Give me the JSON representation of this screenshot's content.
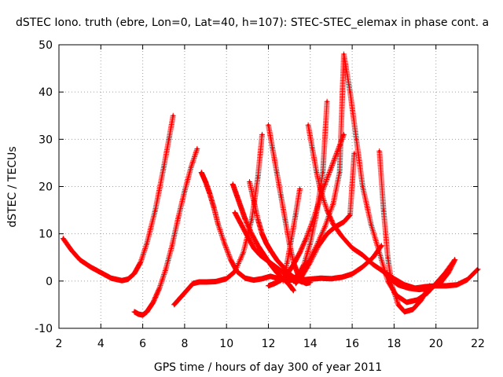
{
  "chart_data": {
    "type": "scatter",
    "title": "dSTEC Iono. truth (ebre, Lon=0, Lat=40, h=107): STEC-STEC_elemax in phase cont. a",
    "xlabel": "GPS time / hours of day 300 of year 2011",
    "ylabel": "dSTEC  / TECUs",
    "xlim": [
      2,
      22
    ],
    "ylim": [
      -10,
      50
    ],
    "xticks": [
      2,
      4,
      6,
      8,
      10,
      12,
      14,
      16,
      18,
      20,
      22
    ],
    "yticks": [
      -10,
      0,
      10,
      20,
      30,
      40,
      50
    ],
    "grid": true,
    "legend": "none",
    "marker": "+",
    "color": "#ff0000",
    "series": [
      {
        "x": [
          2.2,
          2.6,
          3.0,
          3.5,
          4.0,
          4.5,
          5.0,
          5.3,
          5.6,
          5.9,
          6.2,
          6.6,
          7.0,
          7.25,
          7.45
        ],
        "y": [
          9,
          6.5,
          4.5,
          3,
          1.8,
          0.6,
          0.1,
          0.4,
          1.6,
          4,
          8,
          15,
          24,
          30,
          35
        ]
      },
      {
        "x": [
          5.6,
          5.8,
          6.0,
          6.2,
          6.5,
          6.8,
          7.1,
          7.4,
          7.7,
          8.0,
          8.3,
          8.6
        ],
        "y": [
          -6.5,
          -7,
          -7.2,
          -6.5,
          -4.5,
          -1.5,
          2.5,
          7.5,
          13.5,
          19,
          24,
          28
        ]
      },
      {
        "x": [
          7.5,
          7.8,
          8.1,
          8.4,
          8.7,
          9.0,
          9.5,
          10.0,
          10.4,
          10.8,
          11.2,
          11.5,
          11.7
        ],
        "y": [
          -5,
          -3.5,
          -2,
          -0.5,
          -0.2,
          -0.2,
          -0.1,
          0.5,
          2,
          6,
          13,
          22,
          31
        ]
      },
      {
        "x": [
          8.8,
          9.0,
          9.2,
          9.4,
          9.6,
          9.9,
          10.2,
          10.5,
          10.9,
          11.3,
          11.7,
          12.1,
          12.5,
          13.0,
          13.5,
          14.0,
          14.5,
          15.0,
          15.5,
          16.0,
          16.5,
          17.0,
          17.4
        ],
        "y": [
          23,
          21,
          18.5,
          15.5,
          12,
          8,
          4.5,
          2,
          0.6,
          0.2,
          0.5,
          1,
          0.5,
          0.2,
          0.2,
          0.4,
          0.6,
          0.5,
          0.8,
          1.5,
          3,
          5,
          7.5
        ]
      },
      {
        "x": [
          10.3,
          10.5,
          10.7,
          10.9,
          11.2,
          11.5,
          11.8,
          12.1,
          12.4,
          12.7,
          13.0,
          13.2
        ],
        "y": [
          20.5,
          18,
          15.5,
          13,
          10,
          7.5,
          5.5,
          3.5,
          1.8,
          0.5,
          -0.8,
          -2
        ]
      },
      {
        "x": [
          10.4,
          10.7,
          11.0,
          11.3,
          11.6,
          11.9,
          12.2,
          12.5,
          12.8,
          13.1,
          13.4,
          13.7,
          14.0,
          14.3,
          14.6,
          14.8
        ],
        "y": [
          14.5,
          12,
          9.5,
          7,
          5.5,
          4.5,
          3.5,
          2.5,
          1.5,
          0.5,
          1,
          3.5,
          8,
          14.5,
          23,
          38
        ]
      },
      {
        "x": [
          11.1,
          11.3,
          11.5,
          11.7,
          11.9,
          12.1,
          12.4,
          12.7,
          13.0,
          13.3,
          13.6,
          13.9
        ],
        "y": [
          21,
          17,
          13,
          10,
          8,
          6.5,
          4.5,
          3,
          1.5,
          0.5,
          -0.2,
          0
        ]
      },
      {
        "x": [
          12.0,
          12.2,
          12.4,
          12.6,
          12.8,
          13.0,
          13.2,
          13.4,
          13.6,
          13.8,
          14.0
        ],
        "y": [
          33,
          28,
          23,
          18,
          13,
          8,
          4,
          1.5,
          0,
          -0.5,
          -0.3
        ]
      },
      {
        "x": [
          12.0,
          12.3,
          12.6,
          12.9,
          13.2,
          13.5,
          13.8,
          14.1,
          14.4,
          14.7,
          15.0,
          15.3,
          15.6
        ],
        "y": [
          -1,
          -0.5,
          0.2,
          1.5,
          3.5,
          6,
          9,
          12.5,
          16.5,
          20.5,
          24,
          27.5,
          31
        ]
      },
      {
        "x": [
          12.7,
          12.9,
          13.1,
          13.3,
          13.5
        ],
        "y": [
          0,
          4,
          9,
          14,
          19.5
        ]
      },
      {
        "x": [
          13.9,
          14.1,
          14.3,
          14.5,
          14.8,
          15.1,
          15.5,
          16.0,
          16.5,
          17.0,
          17.5,
          18.0,
          18.5,
          19.0,
          19.5,
          20.0,
          20.5,
          21.0,
          21.5,
          22.0
        ],
        "y": [
          33,
          28,
          23,
          19,
          15,
          12,
          9.5,
          7,
          5.5,
          3.5,
          2,
          0.5,
          -0.8,
          -1.5,
          -1.2,
          -1,
          -1,
          -0.8,
          0.3,
          2.5
        ]
      },
      {
        "x": [
          13.2,
          13.5,
          13.9,
          14.3,
          14.7,
          15.1,
          15.4,
          15.6,
          15.9,
          16.2,
          16.5,
          16.9,
          17.3,
          17.7,
          18.1,
          18.6,
          19.1,
          19.6,
          20.0,
          20.4,
          20.9
        ],
        "y": [
          0,
          1.5,
          4,
          7.5,
          11.5,
          16.5,
          23,
          48,
          40,
          30,
          20,
          12,
          6,
          0,
          -3,
          -4.5,
          -4,
          -2.5,
          -0.5,
          1.5,
          4.5
        ]
      },
      {
        "x": [
          13.3,
          13.6,
          14.0,
          14.4,
          14.8,
          15.2,
          15.6,
          15.9,
          16.1
        ],
        "y": [
          -0.5,
          1,
          4,
          7.5,
          10,
          11.5,
          12.5,
          14,
          27
        ]
      },
      {
        "x": [
          17.3,
          17.5,
          17.7,
          17.9,
          18.2,
          18.5,
          18.9,
          19.3,
          19.7
        ],
        "y": [
          27.5,
          15,
          5,
          -1,
          -5,
          -6.5,
          -6,
          -4,
          -1
        ]
      },
      {
        "x": [
          17.5,
          17.8,
          18.2,
          18.7,
          19.2,
          19.7,
          20.2,
          20.6,
          20.9
        ],
        "y": [
          2,
          0.5,
          -0.8,
          -1.5,
          -1.8,
          -1.5,
          -0.5,
          1.8,
          4.5
        ]
      }
    ]
  }
}
